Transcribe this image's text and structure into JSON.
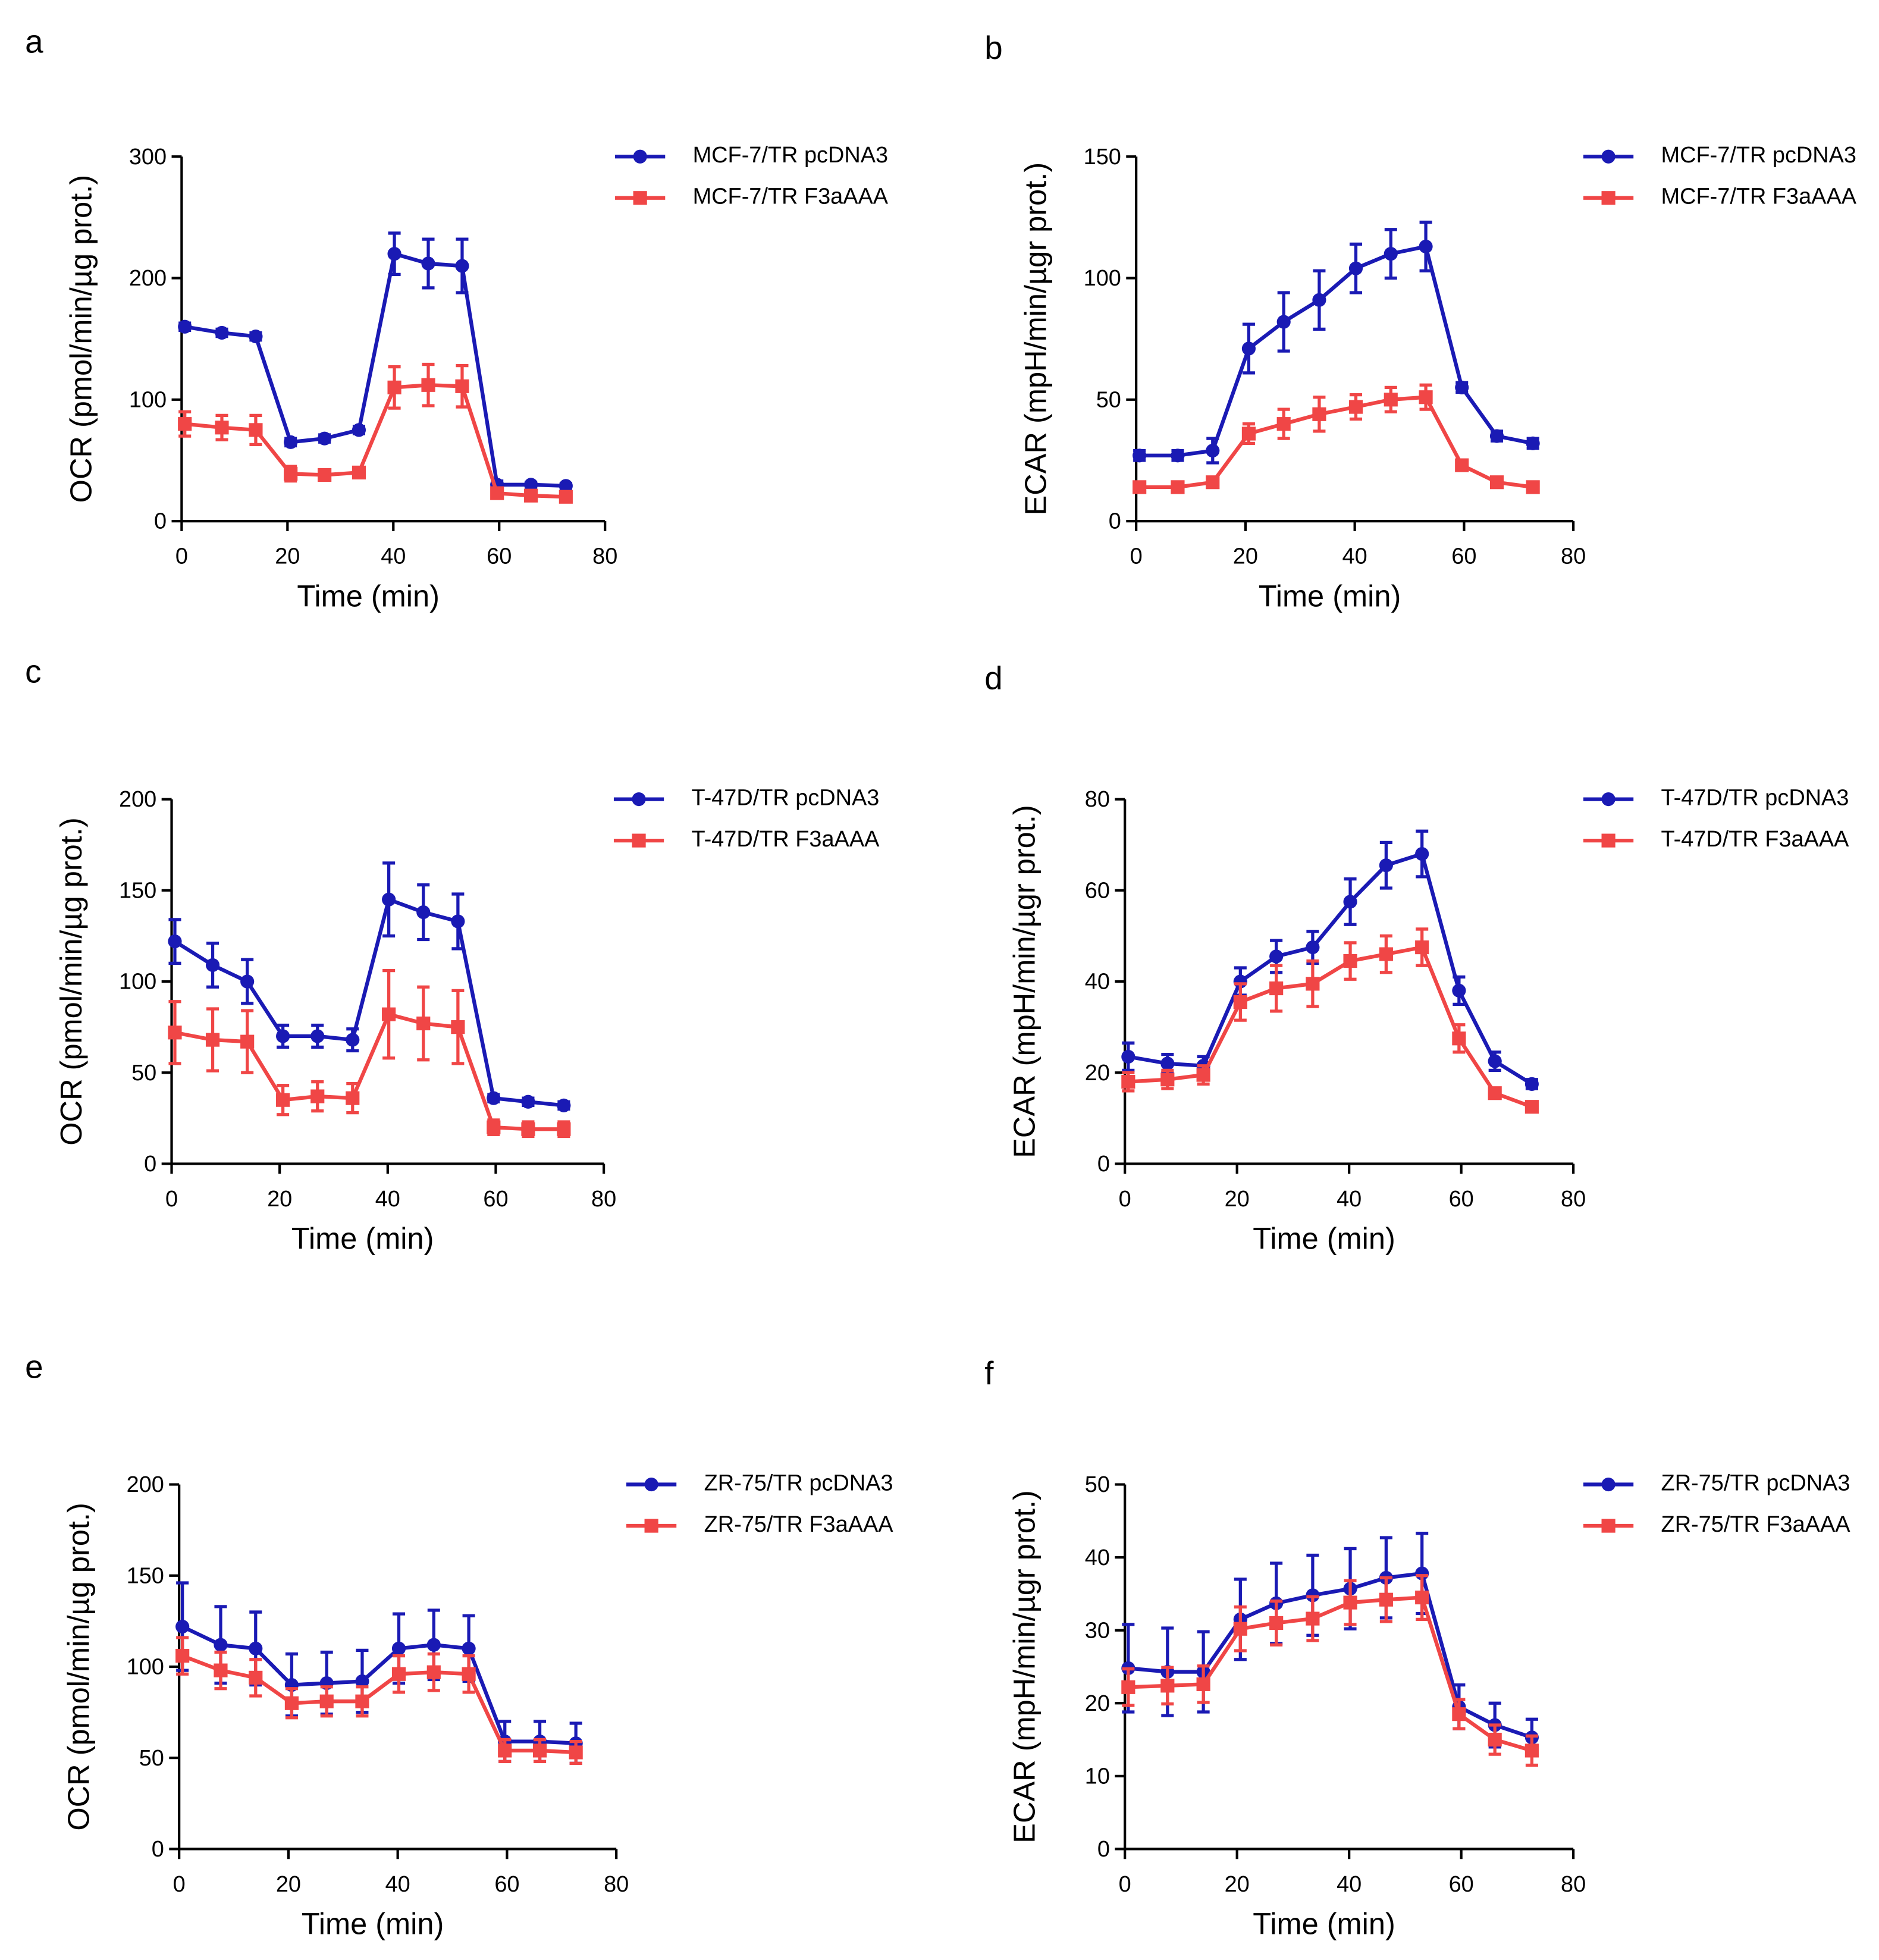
{
  "chart_data": [
    {
      "type": "line",
      "label": "a",
      "ylabel": "OCR (pmol/min/µg prot.)",
      "xlabel": "Time (min)",
      "x": [
        0.6,
        7.6,
        14,
        20.6,
        27,
        33.5,
        40.2,
        46.6,
        53,
        59.6,
        66,
        72.6
      ],
      "xlim": [
        0,
        80
      ],
      "xticks": [
        0,
        20,
        40,
        60,
        80
      ],
      "ylim": [
        0,
        300
      ],
      "yticks": [
        0,
        100,
        200,
        300
      ],
      "series": [
        {
          "name": "MCF-7/TR pcDNA3",
          "color": "#1a1ab4",
          "marker": "circle",
          "values": [
            160,
            155,
            152,
            65,
            68,
            75,
            220,
            212,
            210,
            30,
            30,
            29
          ],
          "errors": [
            3,
            3,
            3,
            3,
            3,
            3,
            17,
            20,
            22,
            3,
            2,
            2
          ]
        },
        {
          "name": "MCF-7/TR F3aAAA",
          "color": "#f04646",
          "marker": "square",
          "values": [
            80,
            77,
            75,
            39,
            38,
            40,
            110,
            112,
            111,
            23,
            21,
            20
          ],
          "errors": [
            10,
            10,
            12,
            6,
            4,
            4,
            17,
            17,
            17,
            4,
            3,
            3
          ]
        }
      ]
    },
    {
      "type": "line",
      "label": "b",
      "ylabel": "ECAR (mpH/min/µgr prot.)",
      "xlabel": "Time (min)",
      "x": [
        0.6,
        7.6,
        14,
        20.6,
        27,
        33.5,
        40.2,
        46.6,
        53,
        59.6,
        66,
        72.6
      ],
      "xlim": [
        0,
        80
      ],
      "xticks": [
        0,
        20,
        40,
        60,
        80
      ],
      "ylim": [
        0,
        150
      ],
      "yticks": [
        0,
        50,
        100,
        150
      ],
      "series": [
        {
          "name": "MCF-7/TR pcDNA3",
          "color": "#1a1ab4",
          "marker": "circle",
          "values": [
            27,
            27,
            29,
            71,
            82,
            91,
            104,
            110,
            113,
            55,
            35,
            32
          ],
          "errors": [
            2,
            2,
            5,
            10,
            12,
            12,
            10,
            10,
            10,
            2,
            2,
            2
          ]
        },
        {
          "name": "MCF-7/TR F3aAAA",
          "color": "#f04646",
          "marker": "square",
          "values": [
            14,
            14,
            16,
            36,
            40,
            44,
            47,
            50,
            51,
            23,
            16,
            14
          ],
          "errors": [
            2,
            2,
            2,
            4,
            6,
            7,
            5,
            5,
            5,
            2,
            2,
            2
          ]
        }
      ]
    },
    {
      "type": "line",
      "label": "c",
      "ylabel": "OCR (pmol/min/µg prot.)",
      "xlabel": "Time (min)",
      "x": [
        0.6,
        7.6,
        14,
        20.6,
        27,
        33.5,
        40.2,
        46.6,
        53,
        59.6,
        66,
        72.6
      ],
      "xlim": [
        0,
        80
      ],
      "xticks": [
        0,
        20,
        40,
        60,
        80
      ],
      "ylim": [
        0,
        200
      ],
      "yticks": [
        0,
        50,
        100,
        150,
        200
      ],
      "series": [
        {
          "name": "T-47D/TR pcDNA3",
          "color": "#1a1ab4",
          "marker": "circle",
          "values": [
            122,
            109,
            100,
            70,
            70,
            68,
            145,
            138,
            133,
            36,
            34,
            32
          ],
          "errors": [
            12,
            12,
            12,
            6,
            6,
            6,
            20,
            15,
            15,
            2,
            2,
            2
          ]
        },
        {
          "name": "T-47D/TR F3aAAA",
          "color": "#f04646",
          "marker": "square",
          "values": [
            72,
            68,
            67,
            35,
            37,
            36,
            82,
            77,
            75,
            20,
            19,
            19
          ],
          "errors": [
            17,
            17,
            17,
            8,
            8,
            8,
            24,
            20,
            20,
            4,
            4,
            4
          ]
        }
      ]
    },
    {
      "type": "line",
      "label": "d",
      "ylabel": "ECAR (mpH/min/µgr prot.)",
      "xlabel": "Time (min)",
      "x": [
        0.6,
        7.6,
        14,
        20.6,
        27,
        33.5,
        40.2,
        46.6,
        53,
        59.6,
        66,
        72.6
      ],
      "xlim": [
        0,
        80
      ],
      "xticks": [
        0,
        20,
        40,
        60,
        80
      ],
      "ylim": [
        0,
        80
      ],
      "yticks": [
        0,
        20,
        40,
        60,
        80
      ],
      "series": [
        {
          "name": "T-47D/TR pcDNA3",
          "color": "#1a1ab4",
          "marker": "circle",
          "values": [
            23.5,
            22,
            21.5,
            40,
            45.5,
            47.5,
            57.5,
            65.5,
            68,
            38,
            22.5,
            17.5
          ],
          "errors": [
            3,
            2,
            2,
            3,
            3.5,
            3.5,
            5,
            5,
            5,
            3,
            2,
            1
          ]
        },
        {
          "name": "T-47D/TR F3aAAA",
          "color": "#f04646",
          "marker": "square",
          "values": [
            18,
            18.5,
            19.5,
            35.5,
            38.5,
            39.5,
            44.5,
            46,
            47.5,
            27.5,
            15.5,
            12.5
          ],
          "errors": [
            2,
            2,
            2,
            4,
            5,
            5,
            4,
            4,
            4,
            3,
            1,
            1
          ]
        }
      ]
    },
    {
      "type": "line",
      "label": "e",
      "ylabel": "OCR (pmol/min/µg prot.)",
      "xlabel": "Time (min)",
      "x": [
        0.6,
        7.6,
        14,
        20.6,
        27,
        33.5,
        40.2,
        46.6,
        53,
        59.6,
        66,
        72.6
      ],
      "xlim": [
        0,
        80
      ],
      "xticks": [
        0,
        20,
        40,
        60,
        80
      ],
      "ylim": [
        0,
        200
      ],
      "yticks": [
        0,
        50,
        100,
        150,
        200
      ],
      "series": [
        {
          "name": "ZR-75/TR pcDNA3",
          "color": "#1a1ab4",
          "marker": "circle",
          "values": [
            122,
            112,
            110,
            90,
            91,
            92,
            110,
            112,
            110,
            59,
            59,
            58
          ],
          "errors": [
            24,
            21,
            20,
            17,
            17,
            17,
            19,
            19,
            18,
            11,
            11,
            11
          ]
        },
        {
          "name": "ZR-75/TR F3aAAA",
          "color": "#f04646",
          "marker": "square",
          "values": [
            106,
            98,
            94,
            80,
            81,
            81,
            96,
            97,
            96,
            54,
            54,
            53
          ],
          "errors": [
            10,
            10,
            10,
            8,
            8,
            8,
            10,
            10,
            10,
            6,
            6,
            6
          ]
        }
      ]
    },
    {
      "type": "line",
      "label": "f",
      "ylabel": "ECAR (mpH/min/µgr prot.)",
      "xlabel": "Time (min)",
      "x": [
        0.6,
        7.6,
        14,
        20.6,
        27,
        33.5,
        40.2,
        46.6,
        53,
        59.6,
        66,
        72.6
      ],
      "xlim": [
        0,
        80
      ],
      "xticks": [
        0,
        20,
        40,
        60,
        80
      ],
      "ylim": [
        0,
        50
      ],
      "yticks": [
        0,
        10,
        20,
        30,
        40,
        50
      ],
      "series": [
        {
          "name": "ZR-75/TR pcDNA3",
          "color": "#1a1ab4",
          "marker": "circle",
          "values": [
            24.8,
            24.3,
            24.3,
            31.5,
            33.7,
            34.8,
            35.7,
            37.2,
            37.8,
            19.5,
            17,
            15.3
          ],
          "errors": [
            6,
            6,
            5.5,
            5.5,
            5.5,
            5.5,
            5.5,
            5.5,
            5.5,
            3,
            3,
            2.5
          ]
        },
        {
          "name": "ZR-75/TR F3aAAA",
          "color": "#f04646",
          "marker": "square",
          "values": [
            22.2,
            22.4,
            22.6,
            30.2,
            31,
            31.6,
            33.8,
            34.2,
            34.5,
            18.5,
            15,
            13.5
          ],
          "errors": [
            2.5,
            2.5,
            2.5,
            3,
            3,
            3,
            3,
            3,
            3,
            2,
            2,
            2
          ]
        }
      ]
    }
  ]
}
